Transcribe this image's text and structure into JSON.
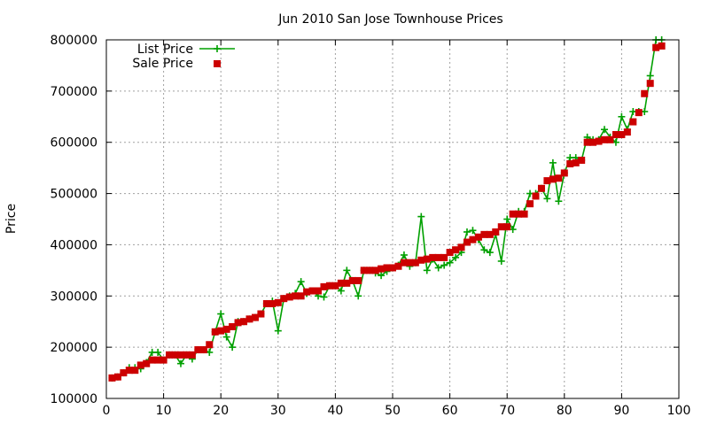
{
  "chart_data": {
    "type": "line",
    "title": "Jun 2010 San Jose Townhouse Prices",
    "xlabel": "",
    "ylabel": "Price",
    "xlim": [
      0,
      100
    ],
    "ylim": [
      100000,
      800000
    ],
    "xticks": [
      "0",
      "10",
      "20",
      "30",
      "40",
      "50",
      "60",
      "70",
      "80",
      "90",
      "100"
    ],
    "yticks": [
      "100000",
      "200000",
      "300000",
      "400000",
      "500000",
      "600000",
      "700000",
      "800000"
    ],
    "grid": true,
    "legend_position": "top-left",
    "x": [
      1,
      2,
      3,
      4,
      5,
      6,
      7,
      8,
      9,
      10,
      11,
      12,
      13,
      14,
      15,
      16,
      17,
      18,
      19,
      20,
      21,
      22,
      23,
      24,
      25,
      26,
      27,
      28,
      29,
      30,
      31,
      32,
      33,
      34,
      35,
      36,
      37,
      38,
      39,
      40,
      41,
      42,
      43,
      44,
      45,
      46,
      47,
      48,
      49,
      50,
      51,
      52,
      53,
      54,
      55,
      56,
      57,
      58,
      59,
      60,
      61,
      62,
      63,
      64,
      65,
      66,
      67,
      68,
      69,
      70,
      71,
      72,
      73,
      74,
      75,
      76,
      77,
      78,
      79,
      80,
      81,
      82,
      83,
      84,
      85,
      86,
      87,
      88,
      89,
      90,
      91,
      92,
      93,
      94,
      95,
      96,
      97
    ],
    "series": [
      {
        "name": "List Price",
        "color": "#00a000",
        "marker": "plus",
        "values": [
          140000,
          142000,
          150000,
          160000,
          160000,
          158000,
          170000,
          190000,
          190000,
          175000,
          185000,
          185000,
          168000,
          185000,
          177000,
          195000,
          195000,
          190000,
          230000,
          265000,
          220000,
          200000,
          250000,
          250000,
          255000,
          258000,
          265000,
          285000,
          290000,
          232000,
          295000,
          300000,
          305000,
          328000,
          305000,
          310000,
          300000,
          298000,
          320000,
          320000,
          310000,
          350000,
          330000,
          300000,
          350000,
          350000,
          345000,
          340000,
          348000,
          355000,
          360000,
          380000,
          358000,
          365000,
          455000,
          350000,
          372000,
          355000,
          360000,
          365000,
          375000,
          385000,
          425000,
          428000,
          410000,
          390000,
          385000,
          420000,
          368000,
          450000,
          430000,
          465000,
          465000,
          500000,
          500000,
          510000,
          490000,
          560000,
          485000,
          540000,
          570000,
          570000,
          565000,
          610000,
          605000,
          605000,
          625000,
          610000,
          600000,
          650000,
          625000,
          660000,
          660000,
          660000,
          730000,
          800000,
          800000
        ]
      },
      {
        "name": "Sale Price",
        "color": "#cc0000",
        "marker": "square",
        "values": [
          140000,
          142000,
          150000,
          155000,
          155000,
          165000,
          168000,
          175000,
          175000,
          175000,
          185000,
          185000,
          185000,
          185000,
          185000,
          195000,
          195000,
          205000,
          230000,
          232000,
          235000,
          240000,
          248000,
          250000,
          255000,
          258000,
          265000,
          285000,
          285000,
          287000,
          295000,
          298000,
          300000,
          300000,
          308000,
          310000,
          310000,
          318000,
          320000,
          320000,
          325000,
          325000,
          330000,
          330000,
          350000,
          350000,
          350000,
          353000,
          355000,
          355000,
          358000,
          365000,
          365000,
          365000,
          370000,
          372000,
          375000,
          375000,
          375000,
          385000,
          390000,
          395000,
          405000,
          410000,
          415000,
          420000,
          420000,
          425000,
          435000,
          435000,
          460000,
          460000,
          460000,
          480000,
          495000,
          510000,
          525000,
          528000,
          530000,
          540000,
          558000,
          560000,
          565000,
          600000,
          600000,
          602000,
          605000,
          605000,
          615000,
          615000,
          620000,
          640000,
          658000,
          695000,
          715000,
          785000,
          788000
        ]
      }
    ]
  }
}
